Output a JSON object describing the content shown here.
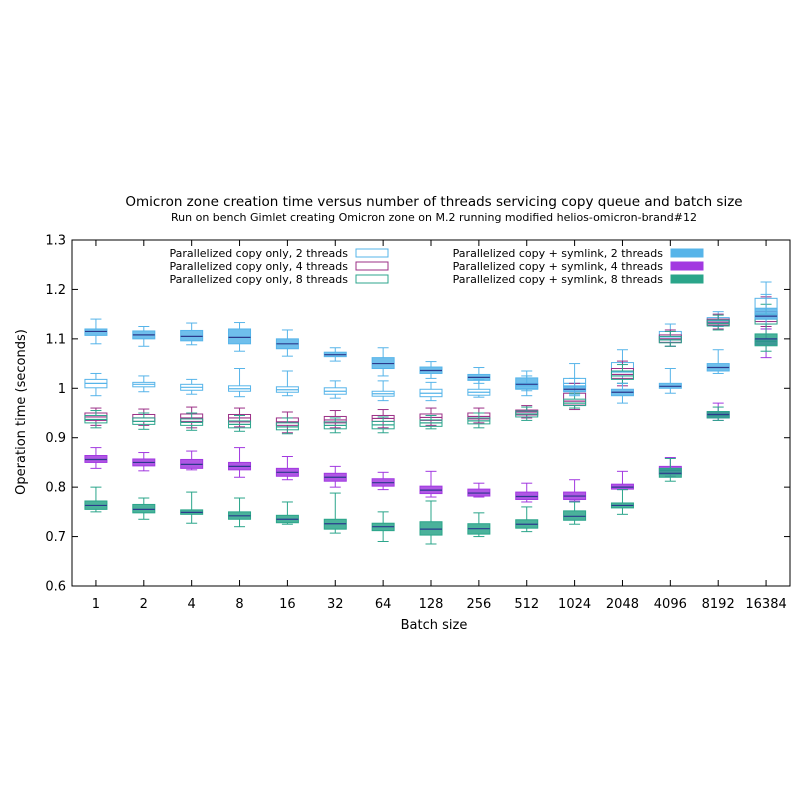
{
  "chart_data": {
    "type": "boxplot",
    "title": "Omicron zone creation time versus number of threads servicing copy queue and batch size",
    "subtitle": "Run on bench Gimlet creating Omicron zone on M.2 running modified helios-omicron-brand#12",
    "xlabel": "Batch size",
    "ylabel": "Operation time (seconds)",
    "ylim": [
      0.6,
      1.3
    ],
    "yticks": [
      "0.6",
      "0.7",
      "0.8",
      "0.9",
      "1",
      "1.1",
      "1.2",
      "1.3"
    ],
    "categories": [
      "1",
      "2",
      "4",
      "8",
      "16",
      "32",
      "64",
      "128",
      "256",
      "512",
      "1024",
      "2048",
      "4096",
      "8192",
      "16384"
    ],
    "grid": false,
    "legend_placement": "top",
    "series": [
      {
        "name": "Parallelized copy only, 2 threads",
        "color": "#56b4e9",
        "filled": false,
        "boxes": [
          {
            "min": 0.985,
            "q1": 1.001,
            "median": 1.01,
            "q3": 1.018,
            "max": 1.03
          },
          {
            "min": 0.993,
            "q1": 1.003,
            "median": 1.008,
            "q3": 1.012,
            "max": 1.025
          },
          {
            "min": 0.988,
            "q1": 0.996,
            "median": 1.002,
            "q3": 1.008,
            "max": 1.018
          },
          {
            "min": 0.983,
            "q1": 0.994,
            "median": 0.999,
            "q3": 1.005,
            "max": 1.04
          },
          {
            "min": 0.985,
            "q1": 0.992,
            "median": 0.997,
            "q3": 1.003,
            "max": 1.035
          },
          {
            "min": 0.98,
            "q1": 0.988,
            "median": 0.994,
            "q3": 1.001,
            "max": 1.015
          },
          {
            "min": 0.975,
            "q1": 0.984,
            "median": 0.989,
            "q3": 0.994,
            "max": 1.015
          },
          {
            "min": 0.975,
            "q1": 0.983,
            "median": 0.99,
            "q3": 0.998,
            "max": 1.012
          },
          {
            "min": 0.982,
            "q1": 0.986,
            "median": 0.992,
            "q3": 0.998,
            "max": 1.018
          },
          {
            "min": 0.985,
            "q1": 0.998,
            "median": 1.005,
            "q3": 1.01,
            "max": 1.025
          },
          {
            "min": 0.988,
            "q1": 1.003,
            "median": 1.01,
            "q3": 1.02,
            "max": 1.05
          },
          {
            "min": 1.01,
            "q1": 1.025,
            "median": 1.033,
            "q3": 1.052,
            "max": 1.078
          },
          {
            "min": 1.085,
            "q1": 1.098,
            "median": 1.104,
            "q3": 1.115,
            "max": 1.13
          },
          {
            "min": 1.125,
            "q1": 1.132,
            "median": 1.137,
            "q3": 1.143,
            "max": 1.155
          },
          {
            "min": 1.13,
            "q1": 1.14,
            "median": 1.15,
            "q3": 1.182,
            "max": 1.215
          }
        ]
      },
      {
        "name": "Parallelized copy only, 4 threads",
        "color": "#9b2f86",
        "filled": false,
        "boxes": [
          {
            "min": 0.925,
            "q1": 0.935,
            "median": 0.942,
            "q3": 0.95,
            "max": 0.96
          },
          {
            "min": 0.925,
            "q1": 0.933,
            "median": 0.94,
            "q3": 0.947,
            "max": 0.958
          },
          {
            "min": 0.92,
            "q1": 0.933,
            "median": 0.94,
            "q3": 0.948,
            "max": 0.962
          },
          {
            "min": 0.922,
            "q1": 0.932,
            "median": 0.94,
            "q3": 0.947,
            "max": 0.96
          },
          {
            "min": 0.91,
            "q1": 0.925,
            "median": 0.932,
            "q3": 0.94,
            "max": 0.952
          },
          {
            "min": 0.92,
            "q1": 0.93,
            "median": 0.936,
            "q3": 0.943,
            "max": 0.955
          },
          {
            "min": 0.92,
            "q1": 0.933,
            "median": 0.939,
            "q3": 0.945,
            "max": 0.957
          },
          {
            "min": 0.925,
            "q1": 0.935,
            "median": 0.941,
            "q3": 0.948,
            "max": 0.96
          },
          {
            "min": 0.93,
            "q1": 0.938,
            "median": 0.943,
            "q3": 0.95,
            "max": 0.96
          },
          {
            "min": 0.94,
            "q1": 0.946,
            "median": 0.952,
            "q3": 0.956,
            "max": 0.965
          },
          {
            "min": 0.957,
            "q1": 0.966,
            "median": 0.974,
            "q3": 0.99,
            "max": 1.01
          },
          {
            "min": 1.005,
            "q1": 1.02,
            "median": 1.028,
            "q3": 1.04,
            "max": 1.055
          },
          {
            "min": 1.085,
            "q1": 1.093,
            "median": 1.1,
            "q3": 1.108,
            "max": 1.118
          },
          {
            "min": 1.12,
            "q1": 1.128,
            "median": 1.134,
            "q3": 1.14,
            "max": 1.15
          },
          {
            "min": 1.125,
            "q1": 1.135,
            "median": 1.145,
            "q3": 1.155,
            "max": 1.185
          }
        ]
      },
      {
        "name": "Parallelized copy only, 8 threads",
        "color": "#2ca58d",
        "filled": false,
        "boxes": [
          {
            "min": 0.92,
            "q1": 0.93,
            "median": 0.937,
            "q3": 0.945,
            "max": 0.955
          },
          {
            "min": 0.917,
            "q1": 0.927,
            "median": 0.933,
            "q3": 0.94,
            "max": 0.95
          },
          {
            "min": 0.915,
            "q1": 0.925,
            "median": 0.931,
            "q3": 0.938,
            "max": 0.95
          },
          {
            "min": 0.913,
            "q1": 0.92,
            "median": 0.927,
            "q3": 0.934,
            "max": 0.945
          },
          {
            "min": 0.908,
            "q1": 0.916,
            "median": 0.922,
            "q3": 0.93,
            "max": 0.94
          },
          {
            "min": 0.91,
            "q1": 0.918,
            "median": 0.925,
            "q3": 0.932,
            "max": 0.94
          },
          {
            "min": 0.91,
            "q1": 0.918,
            "median": 0.926,
            "q3": 0.933,
            "max": 0.942
          },
          {
            "min": 0.918,
            "q1": 0.923,
            "median": 0.93,
            "q3": 0.936,
            "max": 0.945
          },
          {
            "min": 0.92,
            "q1": 0.928,
            "median": 0.934,
            "q3": 0.94,
            "max": 0.95
          },
          {
            "min": 0.935,
            "q1": 0.942,
            "median": 0.948,
            "q3": 0.954,
            "max": 0.962
          },
          {
            "min": 0.96,
            "q1": 0.965,
            "median": 0.97,
            "q3": 0.978,
            "max": 0.99
          },
          {
            "min": 1.01,
            "q1": 1.018,
            "median": 1.025,
            "q3": 1.035,
            "max": 1.048
          },
          {
            "min": 1.085,
            "q1": 1.092,
            "median": 1.098,
            "q3": 1.105,
            "max": 1.115
          },
          {
            "min": 1.118,
            "q1": 1.126,
            "median": 1.131,
            "q3": 1.138,
            "max": 1.148
          },
          {
            "min": 1.12,
            "q1": 1.13,
            "median": 1.14,
            "q3": 1.15,
            "max": 1.17
          }
        ]
      },
      {
        "name": "Parallelized copy + symlink, 2 threads",
        "color": "#56b4e9",
        "filled": true,
        "boxes": [
          {
            "min": 1.09,
            "q1": 1.107,
            "median": 1.115,
            "q3": 1.12,
            "max": 1.14
          },
          {
            "min": 1.085,
            "q1": 1.1,
            "median": 1.108,
            "q3": 1.116,
            "max": 1.125
          },
          {
            "min": 1.088,
            "q1": 1.096,
            "median": 1.105,
            "q3": 1.117,
            "max": 1.132
          },
          {
            "min": 1.075,
            "q1": 1.09,
            "median": 1.103,
            "q3": 1.12,
            "max": 1.133
          },
          {
            "min": 1.065,
            "q1": 1.08,
            "median": 1.09,
            "q3": 1.1,
            "max": 1.118
          },
          {
            "min": 1.055,
            "q1": 1.064,
            "median": 1.068,
            "q3": 1.073,
            "max": 1.082
          },
          {
            "min": 1.025,
            "q1": 1.04,
            "median": 1.05,
            "q3": 1.062,
            "max": 1.082
          },
          {
            "min": 1.02,
            "q1": 1.03,
            "median": 1.036,
            "q3": 1.043,
            "max": 1.054
          },
          {
            "min": 1.01,
            "q1": 1.016,
            "median": 1.022,
            "q3": 1.028,
            "max": 1.042
          },
          {
            "min": 0.995,
            "q1": 0.999,
            "median": 1.008,
            "q3": 1.021,
            "max": 1.035
          },
          {
            "min": 0.985,
            "q1": 0.993,
            "median": 0.998,
            "q3": 1.005,
            "max": 1.02
          },
          {
            "min": 0.97,
            "q1": 0.985,
            "median": 0.992,
            "q3": 0.998,
            "max": 1.01
          },
          {
            "min": 0.99,
            "q1": 1.0,
            "median": 1.004,
            "q3": 1.01,
            "max": 1.04
          },
          {
            "min": 1.03,
            "q1": 1.035,
            "median": 1.042,
            "q3": 1.05,
            "max": 1.078
          },
          {
            "min": 1.13,
            "q1": 1.14,
            "median": 1.146,
            "q3": 1.162,
            "max": 1.19
          }
        ]
      },
      {
        "name": "Parallelized copy + symlink, 4 threads",
        "color": "#a239e0",
        "filled": true,
        "boxes": [
          {
            "min": 0.838,
            "q1": 0.85,
            "median": 0.856,
            "q3": 0.864,
            "max": 0.88
          },
          {
            "min": 0.833,
            "q1": 0.843,
            "median": 0.85,
            "q3": 0.857,
            "max": 0.87
          },
          {
            "min": 0.835,
            "q1": 0.838,
            "median": 0.846,
            "q3": 0.856,
            "max": 0.873
          },
          {
            "min": 0.82,
            "q1": 0.835,
            "median": 0.842,
            "q3": 0.85,
            "max": 0.88
          },
          {
            "min": 0.815,
            "q1": 0.822,
            "median": 0.83,
            "q3": 0.838,
            "max": 0.862
          },
          {
            "min": 0.8,
            "q1": 0.812,
            "median": 0.82,
            "q3": 0.828,
            "max": 0.842
          },
          {
            "min": 0.795,
            "q1": 0.802,
            "median": 0.809,
            "q3": 0.817,
            "max": 0.83
          },
          {
            "min": 0.78,
            "q1": 0.787,
            "median": 0.794,
            "q3": 0.802,
            "max": 0.832
          },
          {
            "min": 0.78,
            "q1": 0.782,
            "median": 0.788,
            "q3": 0.796,
            "max": 0.808
          },
          {
            "min": 0.77,
            "q1": 0.775,
            "median": 0.781,
            "q3": 0.79,
            "max": 0.808
          },
          {
            "min": 0.772,
            "q1": 0.775,
            "median": 0.782,
            "q3": 0.79,
            "max": 0.815
          },
          {
            "min": 0.795,
            "q1": 0.796,
            "median": 0.8,
            "q3": 0.806,
            "max": 0.832
          },
          {
            "min": 0.822,
            "q1": 0.826,
            "median": 0.834,
            "q3": 0.842,
            "max": 0.86
          },
          {
            "min": 0.935,
            "q1": 0.94,
            "median": 0.946,
            "q3": 0.952,
            "max": 0.97
          },
          {
            "min": 1.062,
            "q1": 1.088,
            "median": 1.095,
            "q3": 1.1,
            "max": 1.12
          }
        ]
      },
      {
        "name": "Parallelized copy + symlink, 8 threads",
        "color": "#2aa58a",
        "filled": true,
        "boxes": [
          {
            "min": 0.75,
            "q1": 0.755,
            "median": 0.763,
            "q3": 0.772,
            "max": 0.8
          },
          {
            "min": 0.735,
            "q1": 0.748,
            "median": 0.755,
            "q3": 0.765,
            "max": 0.778
          },
          {
            "min": 0.727,
            "q1": 0.745,
            "median": 0.749,
            "q3": 0.754,
            "max": 0.79
          },
          {
            "min": 0.72,
            "q1": 0.735,
            "median": 0.742,
            "q3": 0.75,
            "max": 0.778
          },
          {
            "min": 0.725,
            "q1": 0.728,
            "median": 0.735,
            "q3": 0.743,
            "max": 0.77
          },
          {
            "min": 0.707,
            "q1": 0.715,
            "median": 0.726,
            "q3": 0.735,
            "max": 0.788
          },
          {
            "min": 0.69,
            "q1": 0.712,
            "median": 0.72,
            "q3": 0.727,
            "max": 0.75
          },
          {
            "min": 0.685,
            "q1": 0.703,
            "median": 0.715,
            "q3": 0.73,
            "max": 0.772
          },
          {
            "min": 0.7,
            "q1": 0.705,
            "median": 0.716,
            "q3": 0.726,
            "max": 0.748
          },
          {
            "min": 0.71,
            "q1": 0.717,
            "median": 0.725,
            "q3": 0.734,
            "max": 0.76
          },
          {
            "min": 0.725,
            "q1": 0.733,
            "median": 0.741,
            "q3": 0.752,
            "max": 0.77
          },
          {
            "min": 0.745,
            "q1": 0.758,
            "median": 0.763,
            "q3": 0.768,
            "max": 0.795
          },
          {
            "min": 0.812,
            "q1": 0.82,
            "median": 0.828,
            "q3": 0.838,
            "max": 0.858
          },
          {
            "min": 0.935,
            "q1": 0.94,
            "median": 0.947,
            "q3": 0.953,
            "max": 0.962
          },
          {
            "min": 1.075,
            "q1": 1.086,
            "median": 1.1,
            "q3": 1.11,
            "max": 1.13
          }
        ]
      }
    ]
  }
}
